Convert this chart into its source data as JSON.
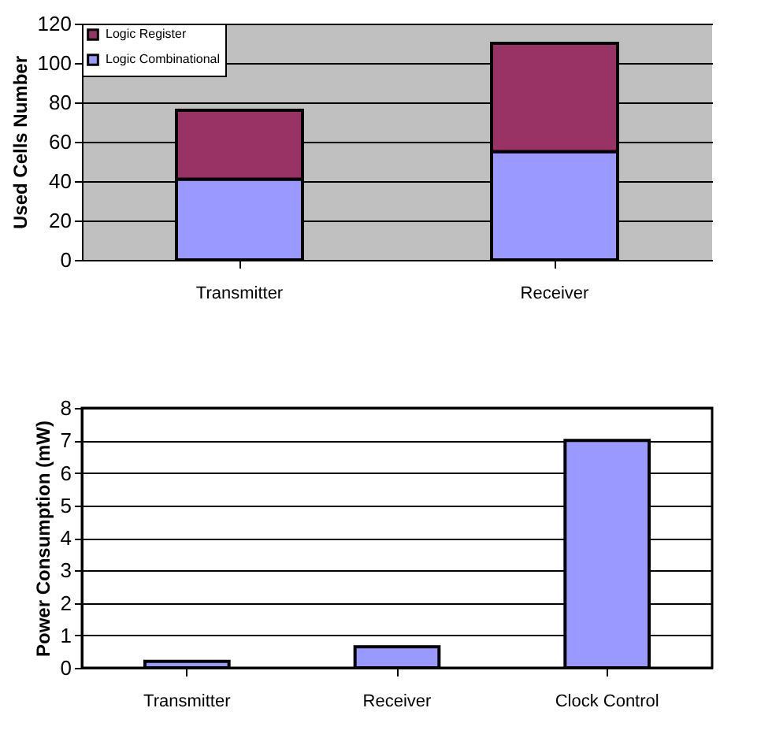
{
  "chart_data": [
    {
      "type": "bar",
      "stacked": true,
      "ylabel": "Used Cells Number",
      "categories": [
        "Transmitter",
        "Receiver"
      ],
      "series": [
        {
          "name": "Logic Combinational",
          "color": "#9999ff",
          "values": [
            41,
            55
          ]
        },
        {
          "name": "Logic Register",
          "color": "#993366",
          "values": [
            35,
            55
          ]
        }
      ],
      "ylim": [
        0,
        120
      ],
      "yticks": [
        0,
        20,
        40,
        60,
        80,
        100,
        120
      ],
      "grid": "y",
      "legend": "top left"
    },
    {
      "type": "bar",
      "ylabel": "Power Consumption (mW)",
      "categories": [
        "Transmitter",
        "Receiver",
        "Clock Control"
      ],
      "series": [
        {
          "color": "#9999ff",
          "values": [
            0.2,
            0.65,
            7
          ]
        }
      ],
      "ylim": [
        0,
        8
      ],
      "yticks": [
        0,
        1,
        2,
        3,
        4,
        5,
        6,
        7,
        8
      ],
      "grid": "y"
    }
  ]
}
